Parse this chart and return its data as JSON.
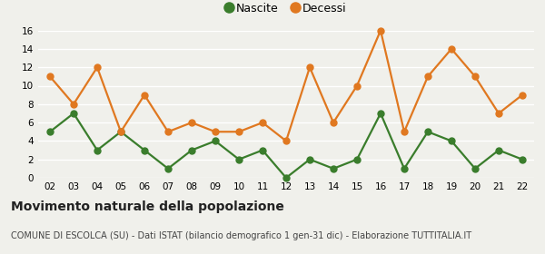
{
  "years": [
    "02",
    "03",
    "04",
    "05",
    "06",
    "07",
    "08",
    "09",
    "10",
    "11",
    "12",
    "13",
    "14",
    "15",
    "16",
    "17",
    "18",
    "19",
    "20",
    "21",
    "22"
  ],
  "nascite": [
    5,
    7,
    3,
    5,
    3,
    1,
    3,
    4,
    2,
    3,
    0,
    2,
    1,
    2,
    7,
    1,
    5,
    4,
    1,
    3,
    2
  ],
  "decessi": [
    11,
    8,
    12,
    5,
    9,
    5,
    6,
    5,
    5,
    6,
    4,
    12,
    6,
    10,
    16,
    5,
    11,
    14,
    11,
    7,
    9
  ],
  "nascite_color": "#3a7d2c",
  "decessi_color": "#e07820",
  "marker_size": 5,
  "line_width": 1.6,
  "ylim": [
    0,
    16
  ],
  "yticks": [
    0,
    2,
    4,
    6,
    8,
    10,
    12,
    14,
    16
  ],
  "title": "Movimento naturale della popolazione",
  "subtitle": "COMUNE DI ESCOLCA (SU) - Dati ISTAT (bilancio demografico 1 gen-31 dic) - Elaborazione TUTTITALIA.IT",
  "title_fontsize": 10,
  "subtitle_fontsize": 7,
  "legend_nascite": "Nascite",
  "legend_decessi": "Decessi",
  "bg_color": "#f0f0eb",
  "grid_color": "#ffffff"
}
